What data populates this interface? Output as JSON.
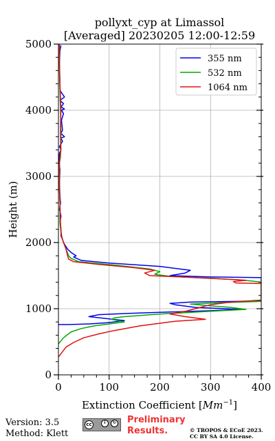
{
  "chart_data": {
    "type": "line",
    "title": "pollyxt_cyp at Limassol",
    "subtitle": "[Averaged] 20230205 12:00-12:59",
    "xlabel": "Extinction Coefficient [$Mm^{-1}$]",
    "xlabel_main": "Extinction Coefficient [",
    "xlabel_unit": "Mm",
    "xlabel_exp": "−1",
    "xlabel_close": "]",
    "ylabel": "Height (m)",
    "xlim": [
      0,
      400
    ],
    "ylim": [
      0,
      5000
    ],
    "xticks": [
      "0",
      "100",
      "200",
      "300",
      "400"
    ],
    "yticks": [
      "0",
      "1000",
      "2000",
      "3000",
      "4000",
      "5000"
    ],
    "grid": true,
    "legend_position": "top-right",
    "series": [
      {
        "name": "355 nm",
        "color": "#0000ee",
        "points": [
          [
            0,
            760
          ],
          [
            20,
            760
          ],
          [
            60,
            770
          ],
          [
            98,
            790
          ],
          [
            130,
            820
          ],
          [
            60,
            880
          ],
          [
            80,
            910
          ],
          [
            140,
            930
          ],
          [
            220,
            950
          ],
          [
            300,
            970
          ],
          [
            360,
            990
          ],
          [
            270,
            1020
          ],
          [
            230,
            1060
          ],
          [
            220,
            1080
          ],
          [
            260,
            1100
          ],
          [
            350,
            1110
          ],
          [
            400,
            1120
          ],
          [
            400,
            1470
          ],
          [
            300,
            1480
          ],
          [
            220,
            1500
          ],
          [
            250,
            1540
          ],
          [
            260,
            1580
          ],
          [
            200,
            1640
          ],
          [
            100,
            1690
          ],
          [
            45,
            1730
          ],
          [
            30,
            1780
          ],
          [
            35,
            1800
          ],
          [
            25,
            1850
          ],
          [
            18,
            1900
          ],
          [
            14,
            1950
          ],
          [
            10,
            2000
          ],
          [
            8,
            2050
          ],
          [
            5,
            2100
          ],
          [
            5,
            2200
          ],
          [
            3,
            2300
          ],
          [
            5,
            2400
          ],
          [
            2,
            2500
          ],
          [
            4,
            2600
          ],
          [
            3,
            2700
          ],
          [
            2,
            2900
          ],
          [
            3,
            3100
          ],
          [
            1,
            3250
          ],
          [
            2,
            3350
          ],
          [
            5,
            3400
          ],
          [
            2,
            3450
          ],
          [
            8,
            3530
          ],
          [
            5,
            3580
          ],
          [
            12,
            3600
          ],
          [
            5,
            3650
          ],
          [
            8,
            3700
          ],
          [
            6,
            3850
          ],
          [
            10,
            3950
          ],
          [
            6,
            4000
          ],
          [
            12,
            4020
          ],
          [
            5,
            4050
          ],
          [
            10,
            4100
          ],
          [
            3,
            4150
          ],
          [
            12,
            4200
          ],
          [
            3,
            4300
          ],
          [
            3,
            4400
          ],
          [
            2,
            4700
          ],
          [
            3,
            4900
          ],
          [
            5,
            4980
          ]
        ]
      },
      {
        "name": "532 nm",
        "color": "#00aa00",
        "points": [
          [
            0,
            470
          ],
          [
            10,
            560
          ],
          [
            25,
            650
          ],
          [
            45,
            700
          ],
          [
            70,
            740
          ],
          [
            100,
            770
          ],
          [
            130,
            800
          ],
          [
            105,
            840
          ],
          [
            110,
            860
          ],
          [
            130,
            880
          ],
          [
            200,
            920
          ],
          [
            300,
            960
          ],
          [
            370,
            990
          ],
          [
            340,
            1020
          ],
          [
            290,
            1050
          ],
          [
            260,
            1070
          ],
          [
            320,
            1090
          ],
          [
            400,
            1110
          ],
          [
            400,
            1400
          ],
          [
            380,
            1420
          ],
          [
            350,
            1440
          ],
          [
            290,
            1460
          ],
          [
            220,
            1490
          ],
          [
            190,
            1520
          ],
          [
            200,
            1560
          ],
          [
            180,
            1600
          ],
          [
            110,
            1660
          ],
          [
            40,
            1710
          ],
          [
            25,
            1760
          ],
          [
            20,
            1800
          ],
          [
            15,
            1900
          ],
          [
            10,
            2000
          ],
          [
            8,
            2050
          ],
          [
            5,
            2150
          ],
          [
            3,
            2300
          ],
          [
            3,
            2600
          ],
          [
            2,
            2800
          ],
          [
            2,
            3200
          ],
          [
            4,
            3300
          ],
          [
            5,
            3600
          ],
          [
            4,
            4000
          ],
          [
            3,
            4300
          ],
          [
            2,
            4600
          ],
          [
            2,
            5000
          ]
        ]
      },
      {
        "name": "1064 nm",
        "color": "#dd1111",
        "points": [
          [
            0,
            270
          ],
          [
            8,
            350
          ],
          [
            15,
            420
          ],
          [
            30,
            490
          ],
          [
            50,
            560
          ],
          [
            80,
            620
          ],
          [
            110,
            670
          ],
          [
            160,
            740
          ],
          [
            230,
            810
          ],
          [
            290,
            840
          ],
          [
            250,
            880
          ],
          [
            220,
            920
          ],
          [
            250,
            960
          ],
          [
            270,
            1000
          ],
          [
            300,
            1060
          ],
          [
            340,
            1100
          ],
          [
            400,
            1130
          ],
          [
            400,
            1380
          ],
          [
            350,
            1390
          ],
          [
            345,
            1410
          ],
          [
            370,
            1430
          ],
          [
            300,
            1460
          ],
          [
            180,
            1500
          ],
          [
            170,
            1540
          ],
          [
            190,
            1580
          ],
          [
            150,
            1620
          ],
          [
            80,
            1670
          ],
          [
            30,
            1710
          ],
          [
            20,
            1750
          ],
          [
            18,
            1800
          ],
          [
            15,
            1900
          ],
          [
            10,
            2000
          ],
          [
            6,
            2100
          ],
          [
            4,
            2300
          ],
          [
            3,
            2600
          ],
          [
            2,
            2800
          ],
          [
            2,
            3200
          ],
          [
            3,
            3300
          ],
          [
            5,
            3400
          ],
          [
            4,
            3600
          ],
          [
            4,
            3800
          ],
          [
            5,
            4000
          ],
          [
            4,
            4200
          ],
          [
            3,
            4400
          ],
          [
            2,
            4700
          ],
          [
            2,
            5000
          ]
        ]
      }
    ]
  },
  "footer": {
    "version": "Version: 3.5",
    "method": "Method: Klett",
    "preliminary_line1": "Preliminary",
    "preliminary_line2": "Results.",
    "copyright_line1": "© TROPOS & ECoE 2023.",
    "copyright_line2": "CC BY SA 4.0 License.",
    "license_logo": "cc-by-sa-icon"
  }
}
